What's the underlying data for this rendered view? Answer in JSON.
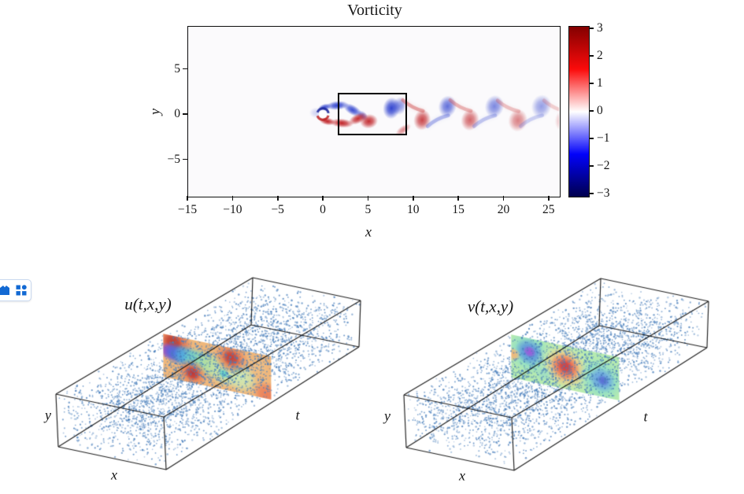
{
  "figure": {
    "vorticity": {
      "title": "Vorticity",
      "xlabel": "x",
      "ylabel": "y",
      "x_tick_labels": [
        "−15",
        "−10",
        "−5",
        "0",
        "5",
        "10",
        "15",
        "20",
        "25"
      ],
      "y_tick_labels": [
        "5",
        "0",
        "−5"
      ],
      "colorbar_tick_labels": [
        "3",
        "2",
        "1",
        "0",
        "−1",
        "−2",
        "−3"
      ]
    },
    "cube_u": {
      "title": "u(t,x,y)",
      "t_label": "t",
      "x_label": "x",
      "y_label": "y"
    },
    "cube_v": {
      "title": "v(t,x,y)",
      "t_label": "t",
      "x_label": "x",
      "y_label": "y"
    }
  },
  "widget": {
    "icons": [
      "bookmark-icon",
      "apps-grid-icon"
    ],
    "icon_color": "#1269d3"
  },
  "chart_data": [
    {
      "type": "heatmap",
      "title": "Vorticity",
      "xlabel": "x",
      "ylabel": "y",
      "xlim": [
        -15,
        26.2
      ],
      "ylim": [
        -9.1,
        9.75
      ],
      "x_ticks": [
        -15,
        -10,
        -5,
        0,
        5,
        10,
        15,
        20,
        25
      ],
      "y_ticks": [
        5,
        0,
        -5
      ],
      "colormap": "seismic",
      "clim": [
        -3,
        3
      ],
      "colorbar_ticks": [
        3,
        2,
        1,
        0,
        -1,
        -2,
        -3
      ],
      "legend_position": "right-colorbar",
      "grid": false,
      "cylinder": {
        "x": 0,
        "y": 0,
        "radius": 0.5
      },
      "sampling_rect": {
        "x0": 1.66,
        "x1": 8.98,
        "y0": -2.0,
        "y1": 2.35
      },
      "vortex_blobs": [
        {
          "x": -0.7,
          "y": 0.15,
          "rx": 0.8,
          "ry": 0.6,
          "rot": 0,
          "sign": -1,
          "a": 0.2
        },
        {
          "x": 0.2,
          "y": 0.75,
          "rx": 0.75,
          "ry": 0.38,
          "rot": -15,
          "sign": -1,
          "a": 0.9
        },
        {
          "x": 1.6,
          "y": 0.95,
          "rx": 1.25,
          "ry": 0.5,
          "rot": -5,
          "sign": -1,
          "a": 0.95
        },
        {
          "x": 3.3,
          "y": 0.45,
          "rx": 1.15,
          "ry": 0.55,
          "rot": 30,
          "sign": -1,
          "a": 0.9
        },
        {
          "x": 4.4,
          "y": -0.15,
          "rx": 0.7,
          "ry": 0.45,
          "rot": 40,
          "sign": -1,
          "a": 0.6
        },
        {
          "x": 7.6,
          "y": 0.65,
          "rx": 0.95,
          "ry": 1.2,
          "rot": 8,
          "sign": -1,
          "a": 0.95
        },
        {
          "x": 8.5,
          "y": 0.9,
          "rx": 0.8,
          "ry": 1.0,
          "rot": 15,
          "sign": -1,
          "a": 0.55
        },
        {
          "x": 0.5,
          "y": -0.8,
          "rx": 0.9,
          "ry": 0.42,
          "rot": 10,
          "sign": 1,
          "a": 0.95
        },
        {
          "x": 2.1,
          "y": -1.0,
          "rx": 1.3,
          "ry": 0.5,
          "rot": 5,
          "sign": 1,
          "a": 0.95
        },
        {
          "x": 3.9,
          "y": -0.5,
          "rx": 1.1,
          "ry": 0.55,
          "rot": -25,
          "sign": 1,
          "a": 0.9
        },
        {
          "x": 5.1,
          "y": -0.8,
          "rx": 1.0,
          "ry": 0.8,
          "rot": -10,
          "sign": 1,
          "a": 0.9
        },
        {
          "x": 8.9,
          "y": -1.75,
          "rx": 1.0,
          "ry": 0.45,
          "rot": -35,
          "sign": 1,
          "a": 0.5
        },
        {
          "x": 11.0,
          "y": -0.65,
          "rx": 0.95,
          "ry": 1.15,
          "rot": 12,
          "sign": 1,
          "a": 0.8,
          "street": true
        },
        {
          "x": 13.8,
          "y": 0.85,
          "rx": 1.0,
          "ry": 1.2,
          "rot": 12,
          "sign": -1,
          "a": 0.72,
          "street": true
        },
        {
          "x": 16.3,
          "y": -0.65,
          "rx": 1.0,
          "ry": 1.2,
          "rot": 12,
          "sign": 1,
          "a": 0.66,
          "street": true
        },
        {
          "x": 19.0,
          "y": 0.85,
          "rx": 1.05,
          "ry": 1.25,
          "rot": 12,
          "sign": -1,
          "a": 0.6,
          "street": true
        },
        {
          "x": 21.6,
          "y": -0.7,
          "rx": 1.05,
          "ry": 1.25,
          "rot": 12,
          "sign": 1,
          "a": 0.54,
          "street": true
        },
        {
          "x": 24.2,
          "y": 0.85,
          "rx": 1.1,
          "ry": 1.3,
          "rot": 12,
          "sign": -1,
          "a": 0.48,
          "street": true
        },
        {
          "x": 26.8,
          "y": -0.7,
          "rx": 1.1,
          "ry": 1.3,
          "rot": 12,
          "sign": 1,
          "a": 0.42,
          "street": true
        }
      ]
    },
    {
      "type": "scatter",
      "projection": "3d",
      "title": "u(t,x,y)",
      "axis_labels": {
        "t": "t",
        "x": "x",
        "y": "y"
      },
      "n_points": 3400,
      "point_color": "#4e8fc7",
      "slice_plane": {
        "position_t_fraction": 0.545,
        "colormap": "rainbow",
        "base_color": "#edaa64",
        "blobs": [
          [
            0.1,
            0.17,
            0.17,
            "#d84a2a"
          ],
          [
            0.09,
            0.15,
            0.09,
            "#b01d12"
          ],
          [
            0.05,
            0.38,
            0.09,
            "#6a2fd0"
          ],
          [
            0.12,
            0.4,
            0.11,
            "#2e55d8"
          ],
          [
            0.21,
            0.42,
            0.12,
            "#2fa3db"
          ],
          [
            0.31,
            0.45,
            0.13,
            "#5ecdb8"
          ],
          [
            0.42,
            0.5,
            0.14,
            "#a4dc92"
          ],
          [
            0.57,
            0.56,
            0.17,
            "#bce29c"
          ],
          [
            0.72,
            0.63,
            0.16,
            "#c6e6a6"
          ],
          [
            0.56,
            0.63,
            0.05,
            "#43cbc3"
          ],
          [
            0.68,
            0.46,
            0.045,
            "#4fd0be"
          ],
          [
            0.63,
            0.24,
            0.16,
            "#e06234"
          ],
          [
            0.63,
            0.23,
            0.085,
            "#bb1d15"
          ],
          [
            0.27,
            0.77,
            0.14,
            "#e06234"
          ],
          [
            0.27,
            0.77,
            0.075,
            "#b21414"
          ],
          [
            0.96,
            0.9,
            0.13,
            "#e8693c"
          ],
          [
            0.88,
            0.3,
            0.1,
            "#ecb36e"
          ]
        ]
      }
    },
    {
      "type": "scatter",
      "projection": "3d",
      "title": "v(t,x,y)",
      "axis_labels": {
        "t": "t",
        "x": "x",
        "y": "y"
      },
      "n_points": 3400,
      "point_color": "#4e8fc7",
      "slice_plane": {
        "position_t_fraction": 0.545,
        "colormap": "rainbow",
        "base_color": "#a9e8a2",
        "blobs": [
          [
            0.17,
            0.33,
            0.21,
            "#72d5c5"
          ],
          [
            0.17,
            0.32,
            0.135,
            "#3e7ed6"
          ],
          [
            0.17,
            0.31,
            0.06,
            "#8b3fd3"
          ],
          [
            0.5,
            0.5,
            0.27,
            "#cde89a"
          ],
          [
            0.5,
            0.5,
            0.2,
            "#f2a95e"
          ],
          [
            0.5,
            0.49,
            0.135,
            "#e2452e"
          ],
          [
            0.5,
            0.48,
            0.07,
            "#c22026"
          ],
          [
            0.83,
            0.6,
            0.21,
            "#72d5c5"
          ],
          [
            0.84,
            0.61,
            0.125,
            "#4f8ede"
          ],
          [
            0.85,
            0.62,
            0.055,
            "#3c55cc"
          ],
          [
            0.015,
            0.45,
            0.07,
            "#f2a95e"
          ],
          [
            0.3,
            0.75,
            0.08,
            "#8fdab8"
          ]
        ]
      }
    }
  ]
}
